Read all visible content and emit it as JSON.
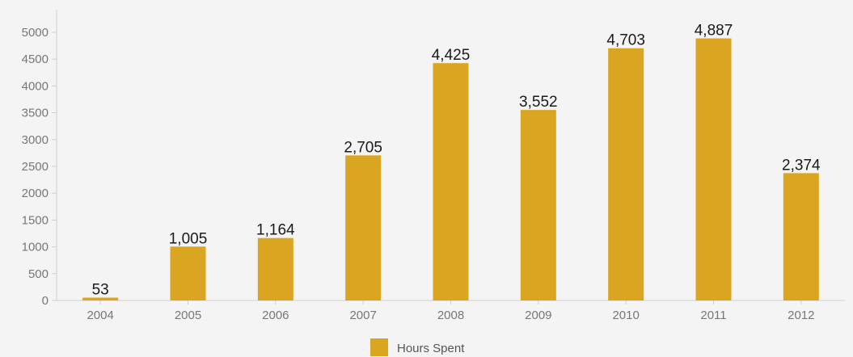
{
  "chart_data": {
    "type": "bar",
    "title": "",
    "xlabel": "",
    "ylabel": "",
    "categories": [
      "2004",
      "2005",
      "2006",
      "2007",
      "2008",
      "2009",
      "2010",
      "2011",
      "2012"
    ],
    "series": [
      {
        "name": "Hours Spent",
        "values": [
          53,
          1005,
          1164,
          2705,
          4425,
          3552,
          4703,
          4887,
          2374
        ],
        "data_labels": [
          "53",
          "1,005",
          "1,164",
          "2,705",
          "4,425",
          "3,552",
          "4,703",
          "4,887",
          "2,374"
        ],
        "color": "#daa520"
      }
    ],
    "ylim": [
      0,
      5000
    ],
    "yticks": [
      0,
      500,
      1000,
      1500,
      2000,
      2500,
      3000,
      3500,
      4000,
      4500,
      5000
    ],
    "grid": false,
    "legend_position": "bottom-center"
  }
}
